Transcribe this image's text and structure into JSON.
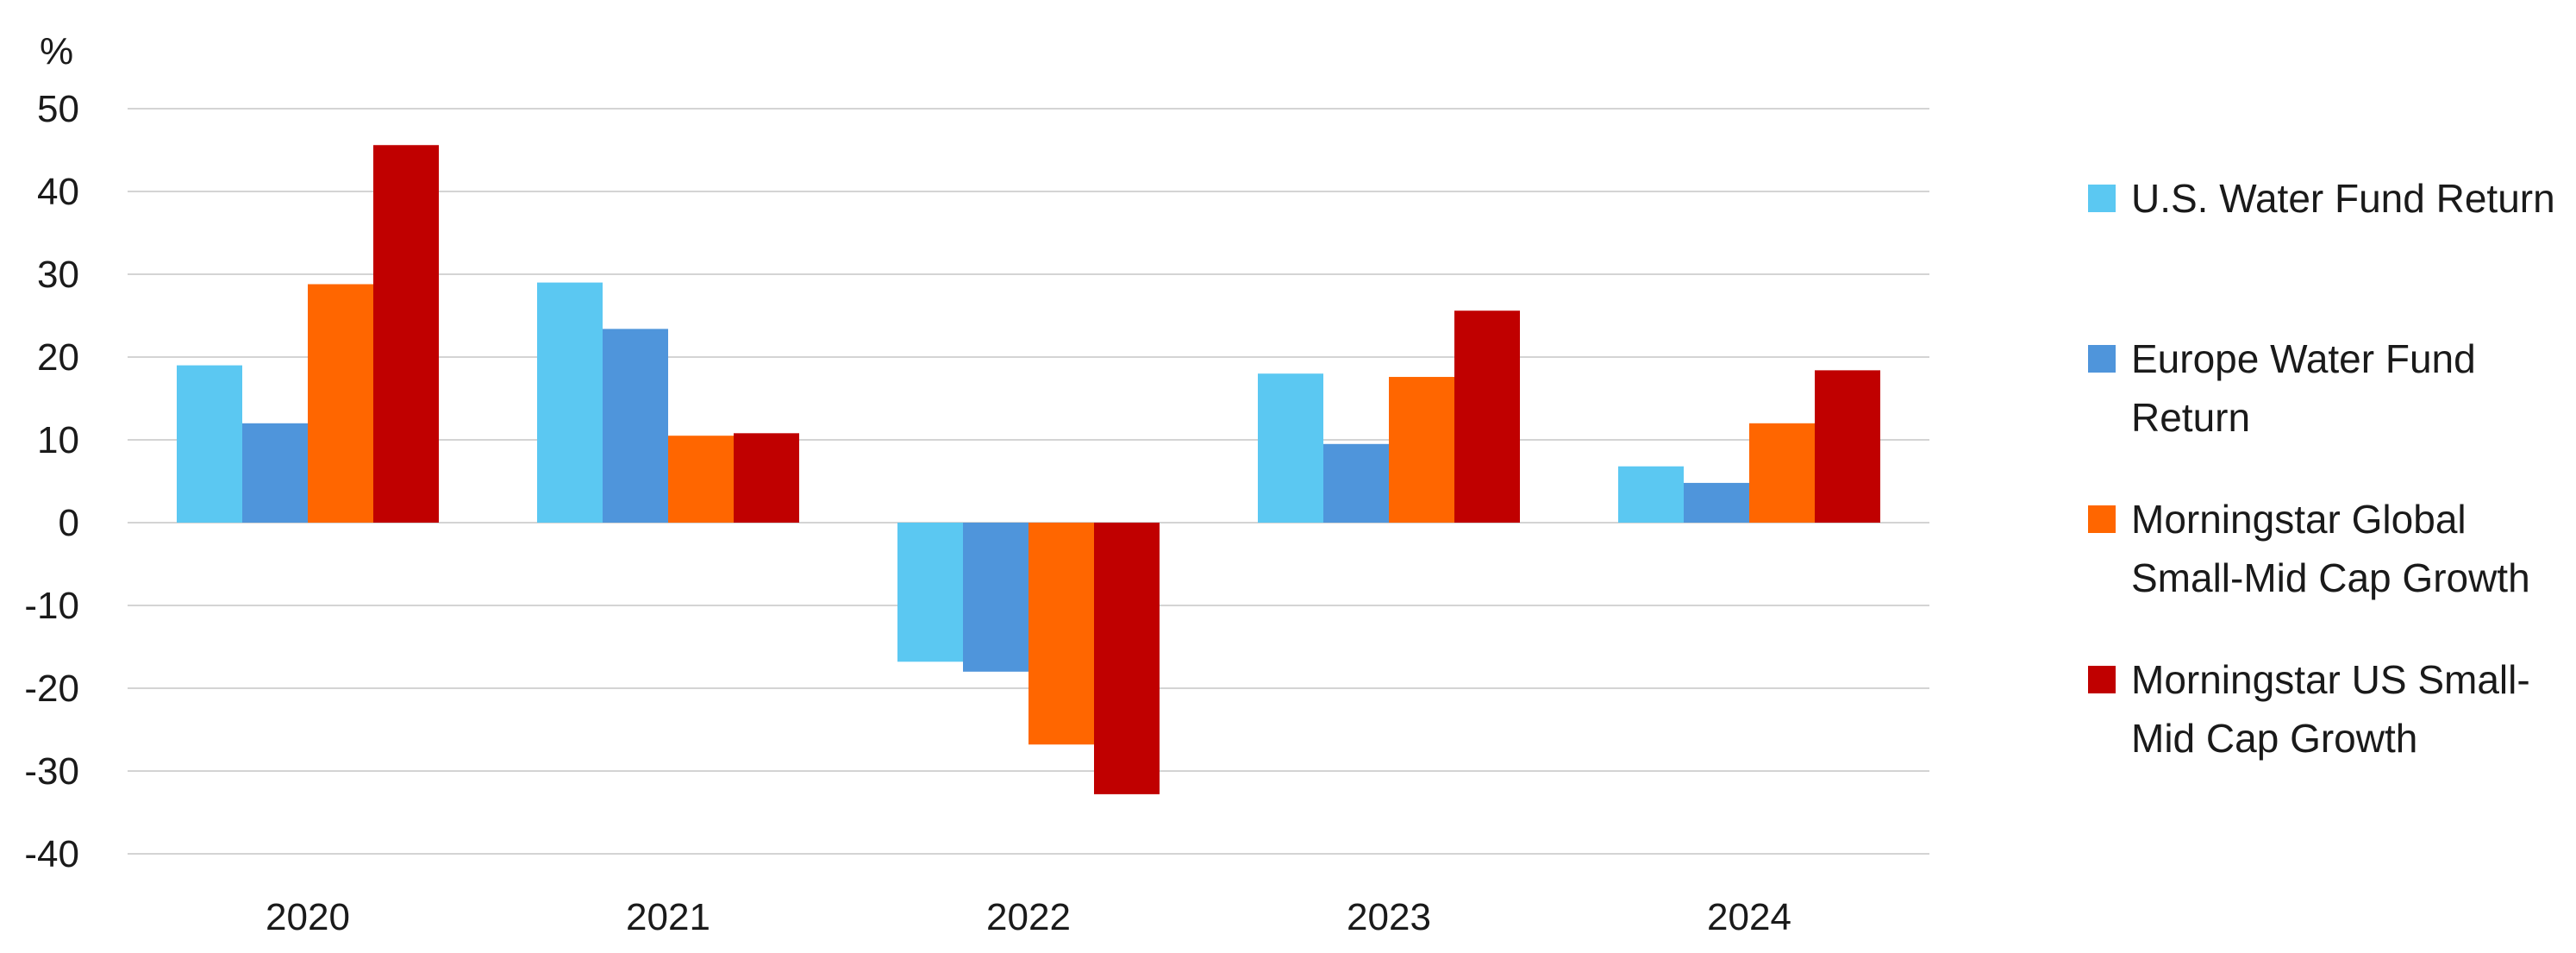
{
  "chart_data": {
    "type": "bar",
    "unit_label": "%",
    "categories": [
      "2020",
      "2021",
      "2022",
      "2023",
      "2024"
    ],
    "series": [
      {
        "name": "U.S. Water Fund Return",
        "legend_lines": [
          "U.S. Water Fund Return"
        ],
        "color": "#5BC8F2",
        "values": [
          19.0,
          29.0,
          -16.8,
          18.0,
          6.8
        ]
      },
      {
        "name": "Europe Water Fund Return",
        "legend_lines": [
          "Europe Water Fund",
          "Return"
        ],
        "color": "#4F95DB",
        "values": [
          12.0,
          23.4,
          -18.0,
          9.5,
          4.8
        ]
      },
      {
        "name": "Morningstar Global Small-Mid Cap Growth",
        "legend_lines": [
          "Morningstar Global",
          "Small-Mid Cap Growth"
        ],
        "color": "#FF6600",
        "values": [
          28.8,
          10.5,
          -26.8,
          17.6,
          12.0
        ]
      },
      {
        "name": "Morningstar US Small-Mid Cap Growth",
        "legend_lines": [
          "Morningstar US Small-",
          "Mid Cap Growth"
        ],
        "color": "#C00000",
        "values": [
          45.6,
          10.8,
          -32.8,
          25.6,
          18.4
        ]
      }
    ],
    "ylim": [
      -40,
      50
    ],
    "y_ticks": [
      "50",
      "40",
      "30",
      "20",
      "10",
      "0",
      "-10",
      "-20",
      "-30",
      "-40"
    ],
    "grid": true,
    "legend_position": "right"
  }
}
